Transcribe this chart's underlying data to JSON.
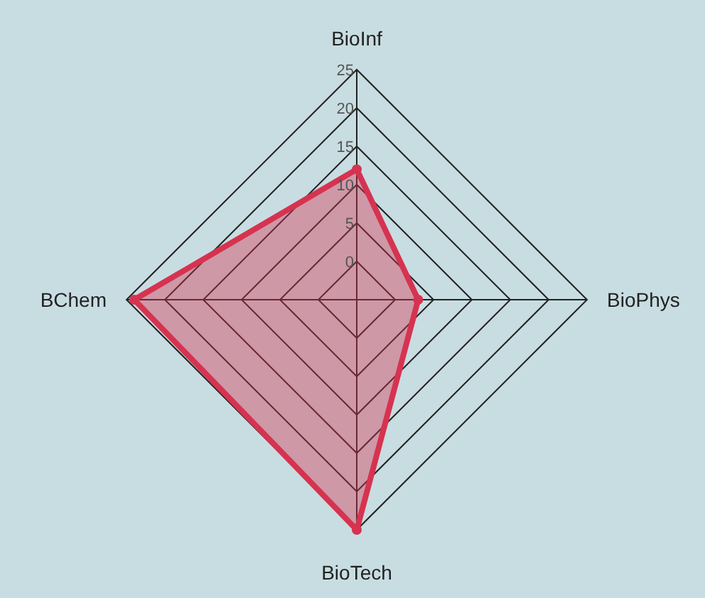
{
  "chart_data": {
    "type": "radar",
    "categories": [
      "BioInf",
      "BioPhys",
      "BioTech",
      "BChem"
    ],
    "ylim": [
      -5,
      25
    ],
    "yticks": [
      0,
      5,
      10,
      15,
      20,
      25
    ],
    "series": [
      {
        "color": "#d63350",
        "values": [
          12,
          3,
          25,
          24
        ]
      }
    ]
  }
}
